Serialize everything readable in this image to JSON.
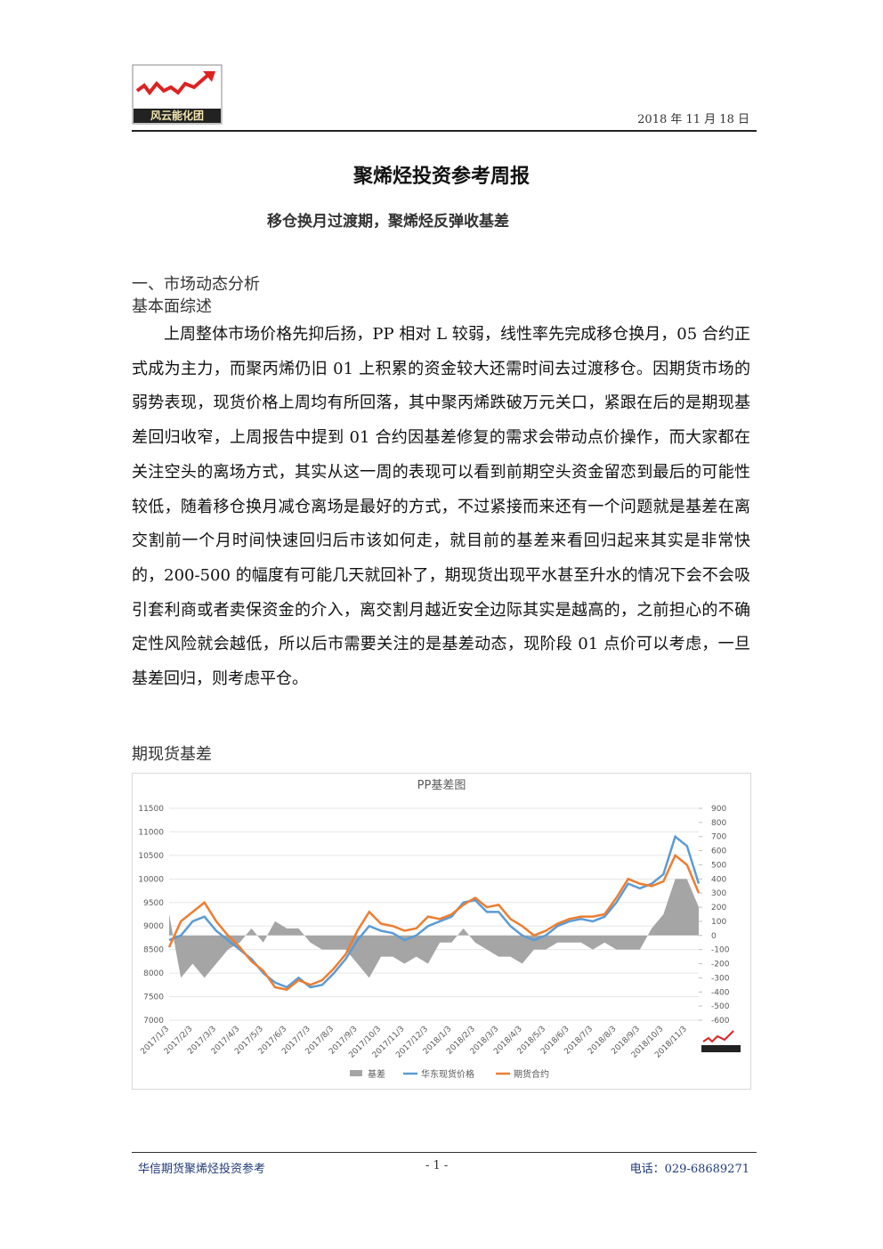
{
  "header": {
    "logo_text": "风云能化团",
    "date": "2018 年 11 月 18 日"
  },
  "title": "聚烯烃投资参考周报",
  "subtitle": "移仓换月过渡期，聚烯烃反弹收基差",
  "section": "一、市场动态分析",
  "subsection1": "基本面综述",
  "paragraph": "上周整体市场价格先抑后扬，PP 相对 L 较弱，线性率先完成移仓换月，05 合约正式成为主力，而聚丙烯仍旧 01 上积累的资金较大还需时间去过渡移仓。因期货市场的弱势表现，现货价格上周均有所回落，其中聚丙烯跌破万元关口，紧跟在后的是期现基差回归收窄，上周报告中提到 01 合约因基差修复的需求会带动点价操作，而大家都在关注空头的离场方式，其实从这一周的表现可以看到前期空头资金留恋到最后的可能性较低，随着移仓换月减仓离场是最好的方式，不过紧接而来还有一个问题就是基差在离交割前一个月时间快速回归后市该如何走，就目前的基差来看回归起来其实是非常快的，200-500 的幅度有可能几天就回补了，期现货出现平水甚至升水的情况下会不会吸引套利商或者卖保资金的介入，离交割月越近安全边际其实是越高的，之前担心的不确定性风险就会越低，所以后市需要关注的是基差动态，现阶段 01 点价可以考虑，一旦基差回归，则考虑平仓。",
  "subsection2": "期现货基差",
  "chart_data": {
    "type": "combo",
    "title": "PP基差图",
    "categories": [
      "2017/1/3",
      null,
      "2017/2/3",
      null,
      "2017/3/3",
      null,
      "2017/4/3",
      null,
      "2017/5/3",
      null,
      "2017/6/3",
      null,
      "2017/7/3",
      null,
      "2017/8/3",
      null,
      "2017/9/3",
      null,
      "2017/10/3",
      null,
      "2017/11/3",
      null,
      "2017/12/3",
      null,
      "2018/1/3",
      null,
      "2018/2/3",
      null,
      "2018/3/3",
      null,
      "2018/4/3",
      null,
      "2018/5/3",
      null,
      "2018/6/3",
      null,
      "2018/7/3",
      null,
      "2018/8/3",
      null,
      "2018/9/3",
      null,
      "2018/10/3",
      null,
      "2018/11/3",
      null
    ],
    "series": [
      {
        "name": "基差",
        "color": "#a5a5a5",
        "axis": "y2",
        "values": [
          150,
          -300,
          -200,
          -300,
          -200,
          -100,
          -50,
          50,
          -50,
          100,
          50,
          50,
          -50,
          -100,
          -100,
          -100,
          -200,
          -300,
          -150,
          -150,
          -200,
          -150,
          -200,
          -50,
          -50,
          50,
          -50,
          -100,
          -150,
          -150,
          -200,
          -100,
          -100,
          -50,
          -50,
          -50,
          -100,
          -50,
          -100,
          -100,
          -100,
          50,
          150,
          400,
          400,
          200
        ]
      },
      {
        "name": "华东现货价格",
        "color": "#5b9bd5",
        "values": [
          8700,
          8800,
          9100,
          9200,
          8900,
          8700,
          8500,
          8300,
          8000,
          7800,
          7700,
          7900,
          7700,
          7750,
          8000,
          8300,
          8700,
          9000,
          8900,
          8850,
          8700,
          8800,
          9000,
          9100,
          9200,
          9500,
          9550,
          9300,
          9300,
          9000,
          8800,
          8700,
          8800,
          9000,
          9100,
          9150,
          9100,
          9200,
          9500,
          9900,
          9800,
          9900,
          10100,
          10900,
          10700,
          9900
        ]
      },
      {
        "name": "期货合约",
        "color": "#ed7d31",
        "values": [
          8550,
          9100,
          9300,
          9500,
          9100,
          8800,
          8550,
          8250,
          8050,
          7700,
          7650,
          7850,
          7750,
          7850,
          8100,
          8400,
          8900,
          9300,
          9050,
          9000,
          8900,
          8950,
          9200,
          9150,
          9250,
          9450,
          9600,
          9400,
          9450,
          9150,
          9000,
          8800,
          8900,
          9050,
          9150,
          9200,
          9200,
          9250,
          9600,
          10000,
          9900,
          9850,
          9950,
          10500,
          10300,
          9700
        ]
      }
    ],
    "ylim": [
      7000,
      11500
    ],
    "yticks": [
      7000,
      7500,
      8000,
      8500,
      9000,
      9500,
      10000,
      10500,
      11000,
      11500
    ],
    "y2lim": [
      -600,
      900
    ],
    "y2ticks": [
      -600,
      -500,
      -400,
      -300,
      -200,
      -100,
      0,
      100,
      200,
      300,
      400,
      500,
      600,
      700,
      800,
      900
    ]
  },
  "footer": {
    "left": "华信期货聚烯烃投资参考",
    "page": "- 1 -",
    "phone": "电话：029-68689271"
  }
}
